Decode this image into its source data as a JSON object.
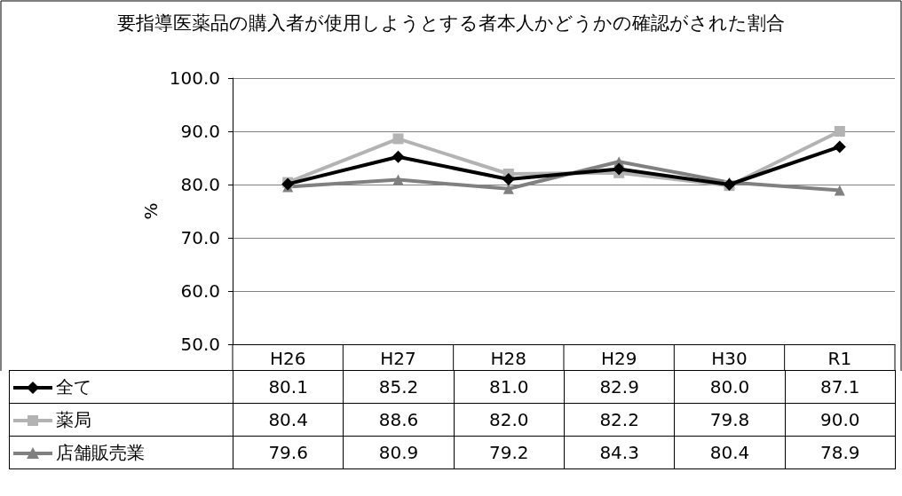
{
  "chart_data": {
    "type": "line",
    "title": "要指導医薬品の購入者が使用しようとする者本人かどうかの確認がされた割合",
    "ylabel": "%",
    "categories": [
      "H26",
      "H27",
      "H28",
      "H29",
      "H30",
      "R1"
    ],
    "series": [
      {
        "name": "全て",
        "color": "#000000",
        "marker": "diamond",
        "values": [
          80.1,
          85.2,
          81.0,
          82.9,
          80.0,
          87.1
        ],
        "value_labels": [
          "80.1",
          "85.2",
          "81.0",
          "82.9",
          "80.0",
          "87.1"
        ]
      },
      {
        "name": "薬局",
        "color": "#b3b3b3",
        "marker": "square",
        "values": [
          80.4,
          88.6,
          82.0,
          82.2,
          79.8,
          90.0
        ],
        "value_labels": [
          "80.4",
          "88.6",
          "82.0",
          "82.2",
          "79.8",
          "90.0"
        ]
      },
      {
        "name": "店舗販売業",
        "color": "#808080",
        "marker": "triangle",
        "values": [
          79.6,
          80.9,
          79.2,
          84.3,
          80.4,
          78.9
        ],
        "value_labels": [
          "79.6",
          "80.9",
          "79.2",
          "84.3",
          "80.4",
          "78.9"
        ]
      }
    ],
    "ylim": [
      50,
      100
    ],
    "yticks": [
      {
        "value": 50,
        "label": "50.0"
      },
      {
        "value": 60,
        "label": "60.0"
      },
      {
        "value": 70,
        "label": "70.0"
      },
      {
        "value": 80,
        "label": "80.0"
      },
      {
        "value": 90,
        "label": "90.0"
      },
      {
        "value": 100,
        "label": "100.0"
      }
    ],
    "grid": "y",
    "legend": "bottom"
  }
}
